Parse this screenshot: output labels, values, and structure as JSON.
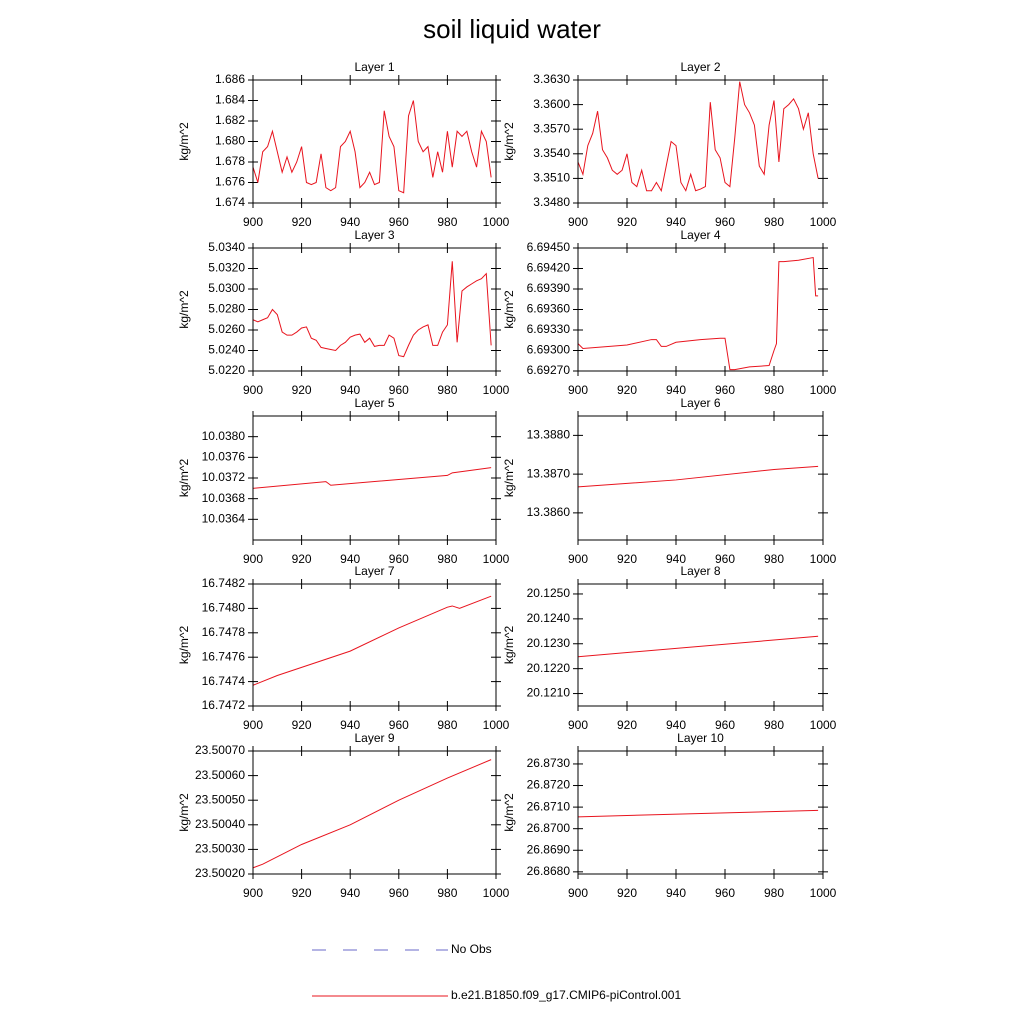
{
  "title": "soil liquid water",
  "legend": [
    {
      "name": "No Obs",
      "color": "#6a6ac8",
      "dashed": true
    },
    {
      "name": "b.e21.B1850.f09_g17.CMIP6-piControl.001",
      "color": "#e8141e",
      "dashed": false
    }
  ],
  "chart_data": [
    {
      "type": "line",
      "title": "Layer 1",
      "ylabel": "kg/m^2",
      "color": "#e8141e",
      "xlim": [
        900,
        1000
      ],
      "xticks": [
        900,
        920,
        940,
        960,
        980,
        1000
      ],
      "ylim": [
        1.674,
        1.686
      ],
      "yticks": [
        1.674,
        1.676,
        1.678,
        {
          "value": 1.68,
          "label": "1.680"
        },
        1.682,
        1.684,
        1.686
      ],
      "x": [
        900,
        902,
        904,
        906,
        908,
        910,
        912,
        914,
        916,
        918,
        920,
        922,
        924,
        926,
        928,
        930,
        932,
        934,
        936,
        938,
        940,
        942,
        944,
        946,
        948,
        950,
        952,
        954,
        956,
        958,
        960,
        962,
        964,
        966,
        968,
        970,
        972,
        974,
        976,
        978,
        980,
        982,
        984,
        986,
        988,
        990,
        992,
        994,
        996,
        998
      ],
      "values": [
        1.6775,
        1.676,
        1.679,
        1.6795,
        1.681,
        1.679,
        1.677,
        1.6785,
        1.677,
        1.678,
        1.6795,
        1.676,
        1.6758,
        1.676,
        1.6788,
        1.6755,
        1.6752,
        1.6755,
        1.6795,
        1.68,
        1.681,
        1.679,
        1.6755,
        1.676,
        1.677,
        1.6758,
        1.676,
        1.683,
        1.6805,
        1.6795,
        1.6752,
        1.675,
        1.6825,
        1.684,
        1.68,
        1.679,
        1.6795,
        1.6765,
        1.679,
        1.677,
        1.681,
        1.6775,
        1.681,
        1.6805,
        1.681,
        1.679,
        1.6775,
        1.681,
        1.68,
        1.6765
      ]
    },
    {
      "type": "line",
      "title": "Layer 2",
      "ylabel": "kg/m^2",
      "color": "#e8141e",
      "xlim": [
        900,
        1000
      ],
      "xticks": [
        900,
        920,
        940,
        960,
        980,
        1000
      ],
      "ylim": [
        3.348,
        3.363
      ],
      "yticks": [
        {
          "value": 3.348,
          "label": "3.3480"
        },
        {
          "value": 3.351,
          "label": "3.3510"
        },
        {
          "value": 3.354,
          "label": "3.3540"
        },
        {
          "value": 3.357,
          "label": "3.3570"
        },
        {
          "value": 3.36,
          "label": "3.3600"
        },
        {
          "value": 3.363,
          "label": "3.3630"
        }
      ],
      "x": [
        900,
        902,
        904,
        906,
        908,
        910,
        912,
        914,
        916,
        918,
        920,
        922,
        924,
        926,
        928,
        930,
        932,
        934,
        936,
        938,
        940,
        942,
        944,
        946,
        948,
        950,
        952,
        954,
        956,
        958,
        960,
        962,
        964,
        966,
        968,
        970,
        972,
        974,
        976,
        978,
        980,
        982,
        984,
        986,
        988,
        990,
        992,
        994,
        996,
        998
      ],
      "values": [
        3.353,
        3.3515,
        3.355,
        3.3565,
        3.3592,
        3.3545,
        3.3535,
        3.352,
        3.3515,
        3.352,
        3.354,
        3.3505,
        3.35,
        3.352,
        3.3495,
        3.3495,
        3.3505,
        3.3495,
        3.3525,
        3.3555,
        3.355,
        3.3505,
        3.3495,
        3.3515,
        3.3495,
        3.3497,
        3.35,
        3.3603,
        3.3545,
        3.3535,
        3.3505,
        3.35,
        3.356,
        3.3628,
        3.36,
        3.359,
        3.3575,
        3.3525,
        3.3515,
        3.3575,
        3.3605,
        3.353,
        3.3595,
        3.36,
        3.3607,
        3.3595,
        3.357,
        3.359,
        3.354,
        3.351
      ]
    },
    {
      "type": "line",
      "title": "Layer 3",
      "ylabel": "kg/m^2",
      "color": "#e8141e",
      "xlim": [
        900,
        1000
      ],
      "xticks": [
        900,
        920,
        940,
        960,
        980,
        1000
      ],
      "ylim": [
        5.022,
        5.034
      ],
      "yticks": [
        {
          "value": 5.022,
          "label": "5.0220"
        },
        {
          "value": 5.024,
          "label": "5.0240"
        },
        {
          "value": 5.026,
          "label": "5.0260"
        },
        {
          "value": 5.028,
          "label": "5.0280"
        },
        {
          "value": 5.03,
          "label": "5.0300"
        },
        {
          "value": 5.032,
          "label": "5.0320"
        },
        {
          "value": 5.034,
          "label": "5.0340"
        }
      ],
      "x": [
        900,
        902,
        904,
        906,
        908,
        910,
        912,
        914,
        916,
        918,
        920,
        922,
        924,
        926,
        928,
        930,
        932,
        934,
        936,
        938,
        940,
        942,
        944,
        946,
        948,
        950,
        952,
        954,
        956,
        958,
        960,
        962,
        964,
        966,
        968,
        970,
        972,
        974,
        976,
        978,
        980,
        982,
        984,
        986,
        988,
        990,
        992,
        994,
        996,
        998
      ],
      "values": [
        5.027,
        5.0268,
        5.027,
        5.0272,
        5.028,
        5.0275,
        5.0258,
        5.0255,
        5.0255,
        5.0258,
        5.0262,
        5.0263,
        5.0252,
        5.025,
        5.0243,
        5.0242,
        5.0241,
        5.024,
        5.0245,
        5.0248,
        5.0253,
        5.0255,
        5.0256,
        5.0248,
        5.0252,
        5.0244,
        5.0245,
        5.0245,
        5.0255,
        5.0252,
        5.0235,
        5.0234,
        5.0245,
        5.0255,
        5.026,
        5.0263,
        5.0265,
        5.0245,
        5.0245,
        5.0258,
        5.0265,
        5.0327,
        5.0248,
        5.0298,
        5.0302,
        5.0305,
        5.0308,
        5.031,
        5.0315,
        5.0245
      ]
    },
    {
      "type": "line",
      "title": "Layer 4",
      "ylabel": "kg/m^2",
      "color": "#e8141e",
      "xlim": [
        900,
        1000
      ],
      "xticks": [
        900,
        920,
        940,
        960,
        980,
        1000
      ],
      "ylim": [
        6.6927,
        6.6945
      ],
      "yticks": [
        {
          "value": 6.6927,
          "label": "6.69270"
        },
        {
          "value": 6.693,
          "label": "6.69300"
        },
        {
          "value": 6.6933,
          "label": "6.69330"
        },
        {
          "value": 6.6936,
          "label": "6.69360"
        },
        {
          "value": 6.6939,
          "label": "6.69390"
        },
        {
          "value": 6.6942,
          "label": "6.69420"
        },
        {
          "value": 6.6945,
          "label": "6.69450"
        }
      ],
      "x": [
        900,
        902,
        920,
        930,
        932,
        934,
        936,
        940,
        950,
        958,
        960,
        962,
        964,
        970,
        978,
        980,
        981,
        982,
        984,
        990,
        996,
        997,
        998
      ],
      "values": [
        6.6931,
        6.69303,
        6.69308,
        6.69316,
        6.69316,
        6.69306,
        6.69306,
        6.69312,
        6.69316,
        6.69318,
        6.69318,
        6.69272,
        6.69272,
        6.69276,
        6.69278,
        6.693,
        6.6931,
        6.6943,
        6.6943,
        6.69432,
        6.69436,
        6.6938,
        6.6938
      ]
    },
    {
      "type": "line",
      "title": "Layer 5",
      "ylabel": "kg/m^2",
      "color": "#e8141e",
      "xlim": [
        900,
        1000
      ],
      "xticks": [
        900,
        920,
        940,
        960,
        980,
        1000
      ],
      "ylim": [
        10.036,
        10.0384
      ],
      "yticks": [
        10.0364,
        10.0368,
        10.0372,
        10.0376,
        {
          "value": 10.038,
          "label": "10.0380"
        }
      ],
      "x": [
        900,
        930,
        932,
        980,
        982,
        998
      ],
      "values": [
        10.037,
        10.03713,
        10.03706,
        10.03725,
        10.0373,
        10.0374
      ]
    },
    {
      "type": "line",
      "title": "Layer 6",
      "ylabel": "kg/m^2",
      "color": "#e8141e",
      "xlim": [
        900,
        1000
      ],
      "xticks": [
        900,
        920,
        940,
        960,
        980,
        1000
      ],
      "ylim": [
        13.3853,
        13.3885
      ],
      "yticks": [
        {
          "value": 13.386,
          "label": "13.3860"
        },
        {
          "value": 13.387,
          "label": "13.3870"
        },
        {
          "value": 13.388,
          "label": "13.3880"
        }
      ],
      "x": [
        900,
        940,
        980,
        998
      ],
      "values": [
        13.38667,
        13.38685,
        13.38712,
        13.3872
      ]
    },
    {
      "type": "line",
      "title": "Layer 7",
      "ylabel": "kg/m^2",
      "color": "#e8141e",
      "xlim": [
        900,
        1000
      ],
      "xticks": [
        900,
        920,
        940,
        960,
        980,
        1000
      ],
      "ylim": [
        16.7472,
        16.7482
      ],
      "yticks": [
        16.7472,
        16.7474,
        16.7476,
        16.7478,
        {
          "value": 16.748,
          "label": "16.7480"
        },
        16.7482
      ],
      "x": [
        900,
        910,
        940,
        960,
        980,
        982,
        985,
        998
      ],
      "values": [
        16.74737,
        16.74745,
        16.74765,
        16.74784,
        16.74801,
        16.74802,
        16.748,
        16.7481
      ]
    },
    {
      "type": "line",
      "title": "Layer 8",
      "ylabel": "kg/m^2",
      "color": "#e8141e",
      "xlim": [
        900,
        1000
      ],
      "xticks": [
        900,
        920,
        940,
        960,
        980,
        1000
      ],
      "ylim": [
        20.1205,
        20.1254
      ],
      "yticks": [
        {
          "value": 20.121,
          "label": "20.1210"
        },
        {
          "value": 20.122,
          "label": "20.1220"
        },
        {
          "value": 20.123,
          "label": "20.1230"
        },
        {
          "value": 20.124,
          "label": "20.1240"
        },
        {
          "value": 20.125,
          "label": "20.1250"
        }
      ],
      "x": [
        900,
        998
      ],
      "values": [
        20.12248,
        20.1233
      ]
    },
    {
      "type": "line",
      "title": "Layer 9",
      "ylabel": "kg/m^2",
      "color": "#e8141e",
      "xlim": [
        900,
        1000
      ],
      "xticks": [
        900,
        920,
        940,
        960,
        980,
        1000
      ],
      "ylim": [
        23.5002,
        23.5007
      ],
      "yticks": [
        {
          "value": 23.5002,
          "label": "23.50020"
        },
        {
          "value": 23.5003,
          "label": "23.50030"
        },
        {
          "value": 23.5004,
          "label": "23.50040"
        },
        {
          "value": 23.5005,
          "label": "23.50050"
        },
        {
          "value": 23.5006,
          "label": "23.50060"
        },
        {
          "value": 23.5007,
          "label": "23.50070"
        }
      ],
      "x": [
        900,
        904,
        920,
        940,
        960,
        980,
        998
      ],
      "values": [
        23.500225,
        23.50024,
        23.50032,
        23.5004,
        23.5005,
        23.50059,
        23.500665
      ]
    },
    {
      "type": "line",
      "title": "Layer 10",
      "ylabel": "kg/m^2",
      "color": "#e8141e",
      "xlim": [
        900,
        1000
      ],
      "xticks": [
        900,
        920,
        940,
        960,
        980,
        1000
      ],
      "ylim": [
        26.8679,
        26.8736
      ],
      "yticks": [
        {
          "value": 26.868,
          "label": "26.8680"
        },
        {
          "value": 26.869,
          "label": "26.8690"
        },
        {
          "value": 26.87,
          "label": "26.8700"
        },
        {
          "value": 26.871,
          "label": "26.8710"
        },
        {
          "value": 26.872,
          "label": "26.8720"
        },
        {
          "value": 26.873,
          "label": "26.8730"
        }
      ],
      "x": [
        900,
        998
      ],
      "values": [
        26.87055,
        26.87085
      ]
    }
  ]
}
